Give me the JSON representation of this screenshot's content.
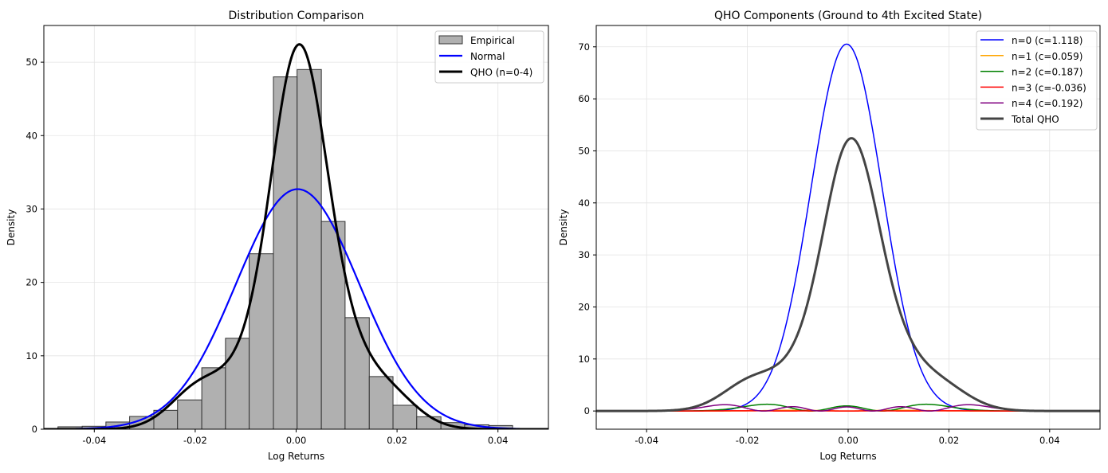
{
  "chart_data": [
    {
      "type": "histogram+line",
      "title": "Distribution Comparison",
      "xlabel": "Log Returns",
      "ylabel": "Density",
      "xlim": [
        -0.05,
        0.05
      ],
      "ylim": [
        0,
        55
      ],
      "xticks": [
        -0.04,
        -0.02,
        0.0,
        0.02,
        0.04
      ],
      "xtick_labels": [
        "-0.04",
        "-0.02",
        "0.00",
        "0.02",
        "0.04"
      ],
      "yticks": [
        0,
        10,
        20,
        30,
        40,
        50
      ],
      "ytick_labels": [
        "0",
        "10",
        "20",
        "30",
        "40",
        "50"
      ],
      "grid": true,
      "legend_placement": "top-right",
      "histogram": {
        "name": "Empirical",
        "color": "#b0b0b0",
        "edge_color": "#333333",
        "bin_edges": [
          -0.0472,
          -0.0424,
          -0.0377,
          -0.033,
          -0.0282,
          -0.0235,
          -0.0187,
          -0.014,
          -0.0093,
          -0.0045,
          0.0002,
          0.005,
          0.0097,
          0.0145,
          0.0192,
          0.0239,
          0.0287,
          0.0334,
          0.0382,
          0.0429
        ],
        "values": [
          0.33,
          0.4,
          0.98,
          1.74,
          2.57,
          3.99,
          8.37,
          12.39,
          23.9,
          48.0,
          49.0,
          28.3,
          15.2,
          7.17,
          3.26,
          1.7,
          0.9,
          0.6,
          0.5
        ]
      },
      "normal": {
        "name": "Normal",
        "color": "#0000ff",
        "mean": 0.0003,
        "std": 0.0122
      },
      "qho": {
        "name": "QHO (n=0-4)",
        "color": "#000000"
      }
    },
    {
      "type": "line",
      "title": "QHO Components (Ground to 4th Excited State)",
      "xlabel": "Log Returns",
      "ylabel": "Density",
      "xlim": [
        -0.05,
        0.05
      ],
      "ylim": [
        -3.5,
        74.1
      ],
      "xticks": [
        -0.04,
        -0.02,
        0.0,
        0.02,
        0.04
      ],
      "xtick_labels": [
        "-0.04",
        "-0.02",
        "0.00",
        "0.02",
        "0.04"
      ],
      "yticks": [
        0,
        10,
        20,
        30,
        40,
        50,
        60,
        70
      ],
      "ytick_labels": [
        "0",
        "10",
        "20",
        "30",
        "40",
        "50",
        "60",
        "70"
      ],
      "grid": true,
      "legend_placement": "top-right",
      "model": {
        "center": -0.0003,
        "scale": 0.01
      },
      "series": [
        {
          "name": "n=0 (c=1.118)",
          "n": 0,
          "c": 1.118,
          "color": "#0000ff"
        },
        {
          "name": "n=1 (c=0.059)",
          "n": 1,
          "c": 0.059,
          "color": "#ffa500"
        },
        {
          "name": "n=2 (c=0.187)",
          "n": 2,
          "c": 0.187,
          "color": "#008000"
        },
        {
          "name": "n=3 (c=-0.036)",
          "n": 3,
          "c": -0.036,
          "color": "#ff0000"
        },
        {
          "name": "n=4 (c=0.192)",
          "n": 4,
          "c": 0.192,
          "color": "#800080"
        },
        {
          "name": "Total QHO",
          "total": true,
          "color": "#444444"
        }
      ]
    }
  ]
}
